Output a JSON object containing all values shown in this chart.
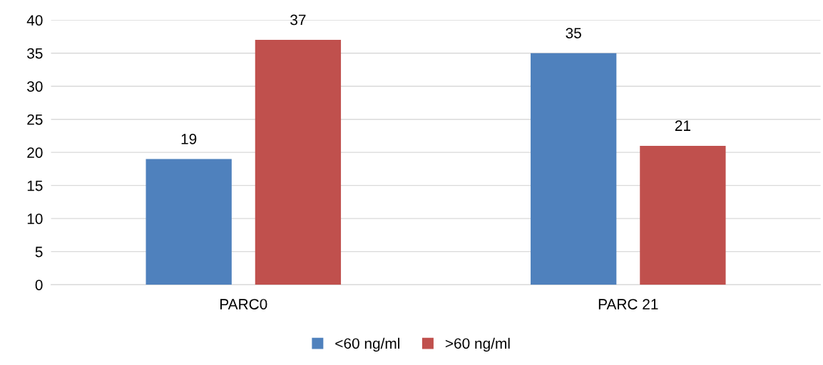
{
  "chart_data": {
    "type": "bar",
    "categories": [
      "PARC0",
      "PARC 21"
    ],
    "series": [
      {
        "name": "<60 ng/ml",
        "color": "#4f81bd",
        "values": [
          19,
          35
        ]
      },
      {
        "name": ">60 ng/ml",
        "color": "#c0504d",
        "values": [
          37,
          21
        ]
      }
    ],
    "ylim": [
      0,
      40
    ],
    "yticks": [
      0,
      5,
      10,
      15,
      20,
      25,
      30,
      35,
      40
    ],
    "grid": "y",
    "legend": "bottom",
    "data_labels": true
  }
}
